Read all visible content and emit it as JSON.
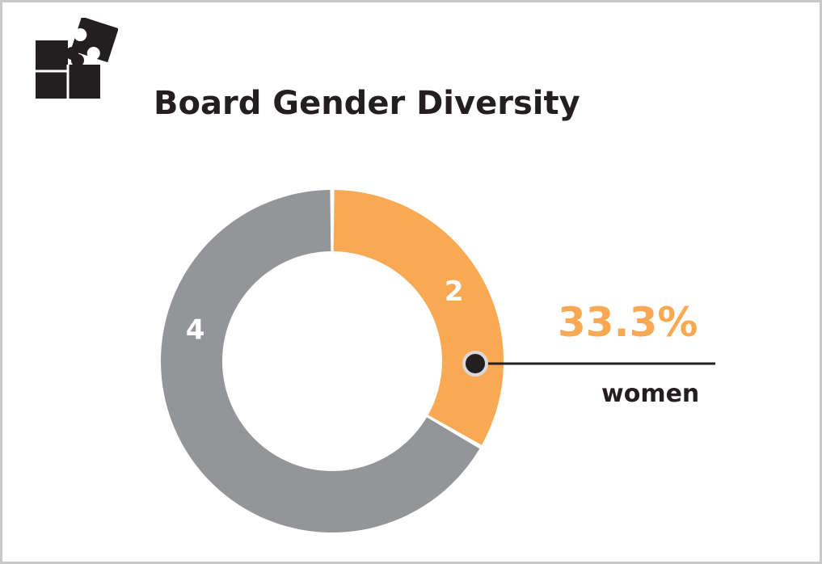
{
  "title": "Board Gender Diversity",
  "icon": "puzzle-icon",
  "colors": {
    "women": "#f9a953",
    "men": "#939598",
    "text": "#231f20",
    "border": "#c8c8c8"
  },
  "chart_data": {
    "type": "pie",
    "variant": "donut",
    "title": "Board Gender Diversity",
    "slices": [
      {
        "name": "women",
        "value": 2,
        "label": "2",
        "color": "#f9a953"
      },
      {
        "name": "",
        "value": 4,
        "label": "4",
        "color": "#939598"
      }
    ],
    "callout": {
      "percent_text": "33.3%",
      "category_text": "women"
    }
  }
}
